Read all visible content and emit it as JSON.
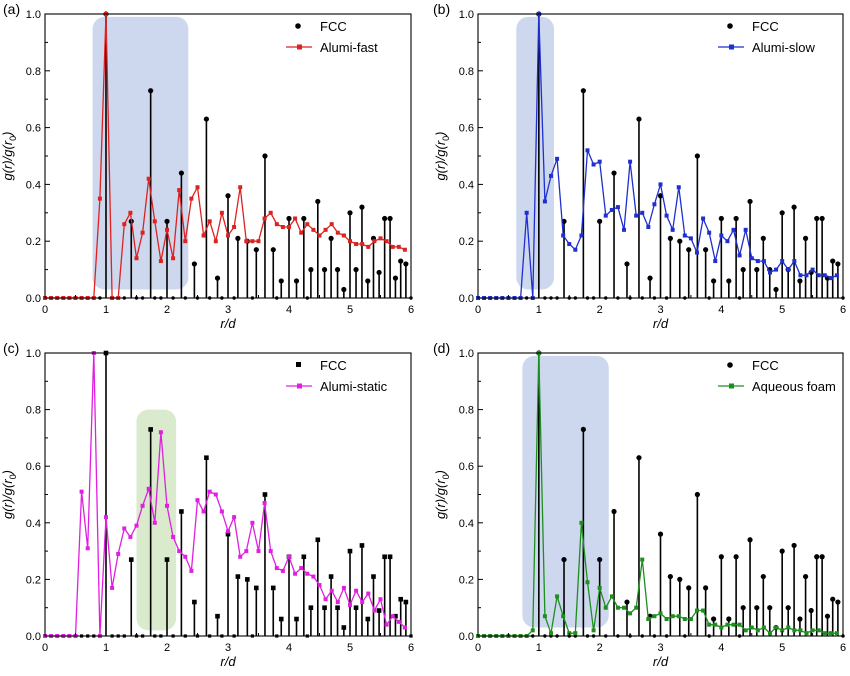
{
  "chart_data": [
    {
      "type": "line",
      "panel_label": "(a)",
      "xlabel": "r/d",
      "ylabel": "g(r)/g(r",
      "ylabel_sub": "0",
      "ylabel_tail": ")",
      "xlim": [
        0,
        6
      ],
      "ylim": [
        0,
        1.0
      ],
      "xticks": [
        "0",
        "1",
        "2",
        "3",
        "4",
        "5",
        "6"
      ],
      "yticks": [
        "0.0",
        "0.2",
        "0.4",
        "0.6",
        "0.8",
        "1.0"
      ],
      "legend_position": "top-right",
      "color": "#dd2222",
      "marker": "square",
      "highlight": {
        "x_range": [
          0.78,
          2.35
        ],
        "y_range": [
          0.03,
          0.99
        ],
        "color": "#c8d4ec"
      },
      "fcc": {
        "name": "FCC",
        "marker": "circle",
        "x": [
          1.0,
          1.414,
          1.732,
          2.0,
          2.236,
          2.449,
          2.646,
          2.828,
          3.0,
          3.162,
          3.317,
          3.464,
          3.606,
          3.742,
          3.873,
          4.0,
          4.123,
          4.243,
          4.359,
          4.472,
          4.583,
          4.69,
          4.796,
          4.899,
          5.0,
          5.099,
          5.196,
          5.292,
          5.385,
          5.477,
          5.568,
          5.657,
          5.745,
          5.831,
          5.916
        ],
        "y": [
          1.0,
          0.27,
          0.73,
          0.27,
          0.44,
          0.12,
          0.63,
          0.07,
          0.36,
          0.21,
          0.2,
          0.17,
          0.5,
          0.17,
          0.06,
          0.28,
          0.06,
          0.28,
          0.1,
          0.34,
          0.1,
          0.21,
          0.1,
          0.03,
          0.3,
          0.1,
          0.32,
          0.06,
          0.21,
          0.09,
          0.28,
          0.28,
          0.07,
          0.13,
          0.12
        ]
      },
      "series": [
        {
          "name": "Alumi-fast",
          "x": [
            0.0,
            0.1,
            0.2,
            0.3,
            0.4,
            0.5,
            0.6,
            0.7,
            0.8,
            0.9,
            1.0,
            1.1,
            1.2,
            1.3,
            1.4,
            1.5,
            1.6,
            1.7,
            1.8,
            1.9,
            2.0,
            2.1,
            2.2,
            2.3,
            2.4,
            2.5,
            2.6,
            2.7,
            2.8,
            2.9,
            3.0,
            3.1,
            3.2,
            3.3,
            3.4,
            3.5,
            3.6,
            3.7,
            3.8,
            3.9,
            4.0,
            4.1,
            4.2,
            4.3,
            4.4,
            4.5,
            4.6,
            4.7,
            4.8,
            4.9,
            5.0,
            5.1,
            5.2,
            5.3,
            5.4,
            5.5,
            5.6,
            5.7,
            5.8,
            5.9
          ],
          "values": [
            0.0,
            0.0,
            0.0,
            0.0,
            0.0,
            0.0,
            0.0,
            0.0,
            0.0,
            0.35,
            1.0,
            0.0,
            0.0,
            0.26,
            0.3,
            0.14,
            0.23,
            0.42,
            0.27,
            0.13,
            0.24,
            0.14,
            0.38,
            0.2,
            0.35,
            0.39,
            0.22,
            0.27,
            0.2,
            0.3,
            0.22,
            0.25,
            0.39,
            0.2,
            0.2,
            0.2,
            0.28,
            0.3,
            0.26,
            0.25,
            0.25,
            0.28,
            0.23,
            0.26,
            0.24,
            0.22,
            0.24,
            0.26,
            0.23,
            0.22,
            0.2,
            0.19,
            0.19,
            0.18,
            0.2,
            0.21,
            0.2,
            0.18,
            0.18,
            0.17
          ]
        }
      ]
    },
    {
      "type": "line",
      "panel_label": "(b)",
      "xlabel": "r/d",
      "ylabel": "g(r)/g(r",
      "ylabel_sub": "0",
      "ylabel_tail": ")",
      "xlim": [
        0,
        6
      ],
      "ylim": [
        0,
        1.0
      ],
      "xticks": [
        "0",
        "1",
        "2",
        "3",
        "4",
        "5",
        "6"
      ],
      "yticks": [
        "0.0",
        "0.2",
        "0.4",
        "0.6",
        "0.8",
        "1.0"
      ],
      "legend_position": "top-right",
      "color": "#1f2fd0",
      "marker": "square",
      "highlight": {
        "x_range": [
          0.63,
          1.25
        ],
        "y_range": [
          0.03,
          0.99
        ],
        "color": "#c8d4ec"
      },
      "fcc": {
        "name": "FCC",
        "marker": "circle",
        "x": [
          1.0,
          1.414,
          1.732,
          2.0,
          2.236,
          2.449,
          2.646,
          2.828,
          3.0,
          3.162,
          3.317,
          3.464,
          3.606,
          3.742,
          3.873,
          4.0,
          4.123,
          4.243,
          4.359,
          4.472,
          4.583,
          4.69,
          4.796,
          4.899,
          5.0,
          5.099,
          5.196,
          5.292,
          5.385,
          5.477,
          5.568,
          5.657,
          5.745,
          5.831,
          5.916
        ],
        "y": [
          1.0,
          0.27,
          0.73,
          0.27,
          0.44,
          0.12,
          0.63,
          0.07,
          0.36,
          0.21,
          0.2,
          0.17,
          0.5,
          0.17,
          0.06,
          0.28,
          0.06,
          0.28,
          0.1,
          0.34,
          0.1,
          0.21,
          0.1,
          0.03,
          0.3,
          0.1,
          0.32,
          0.06,
          0.21,
          0.09,
          0.28,
          0.28,
          0.07,
          0.13,
          0.12
        ]
      },
      "series": [
        {
          "name": "Alumi-slow",
          "x": [
            0.0,
            0.1,
            0.2,
            0.3,
            0.4,
            0.5,
            0.6,
            0.7,
            0.8,
            0.9,
            1.0,
            1.1,
            1.2,
            1.3,
            1.4,
            1.5,
            1.6,
            1.7,
            1.8,
            1.9,
            2.0,
            2.1,
            2.2,
            2.3,
            2.4,
            2.5,
            2.6,
            2.7,
            2.8,
            2.9,
            3.0,
            3.1,
            3.2,
            3.3,
            3.4,
            3.5,
            3.6,
            3.7,
            3.8,
            3.9,
            4.0,
            4.1,
            4.2,
            4.3,
            4.4,
            4.5,
            4.6,
            4.7,
            4.8,
            4.9,
            5.0,
            5.1,
            5.2,
            5.3,
            5.4,
            5.5,
            5.6,
            5.7,
            5.8,
            5.9
          ],
          "values": [
            0.0,
            0.0,
            0.0,
            0.0,
            0.0,
            0.0,
            0.0,
            0.0,
            0.3,
            0.0,
            1.0,
            0.34,
            0.43,
            0.49,
            0.22,
            0.19,
            0.17,
            0.22,
            0.52,
            0.47,
            0.48,
            0.29,
            0.31,
            0.32,
            0.24,
            0.48,
            0.29,
            0.3,
            0.25,
            0.33,
            0.4,
            0.29,
            0.24,
            0.39,
            0.22,
            0.21,
            0.16,
            0.28,
            0.23,
            0.13,
            0.22,
            0.2,
            0.24,
            0.15,
            0.24,
            0.14,
            0.13,
            0.13,
            0.09,
            0.1,
            0.13,
            0.1,
            0.13,
            0.08,
            0.08,
            0.1,
            0.08,
            0.08,
            0.07,
            0.08
          ]
        }
      ]
    },
    {
      "type": "line",
      "panel_label": "(c)",
      "xlabel": "r/d",
      "ylabel": "g(r)/g(r",
      "ylabel_sub": "0",
      "ylabel_tail": ")",
      "xlim": [
        0,
        6
      ],
      "ylim": [
        0,
        1.0
      ],
      "xticks": [
        "0",
        "1",
        "2",
        "3",
        "4",
        "5",
        "6"
      ],
      "yticks": [
        "0.0",
        "0.2",
        "0.4",
        "0.6",
        "0.8",
        "1.0"
      ],
      "legend_position": "top-right",
      "color": "#e020e0",
      "marker": "square",
      "highlight": {
        "x_range": [
          1.5,
          2.15
        ],
        "y_range": [
          0.02,
          0.8
        ],
        "color": "#d6e8c8"
      },
      "fcc": {
        "name": "FCC",
        "marker": "square",
        "x": [
          1.0,
          1.414,
          1.732,
          2.0,
          2.236,
          2.449,
          2.646,
          2.828,
          3.0,
          3.162,
          3.317,
          3.464,
          3.606,
          3.742,
          3.873,
          4.0,
          4.123,
          4.243,
          4.359,
          4.472,
          4.583,
          4.69,
          4.796,
          4.899,
          5.0,
          5.099,
          5.196,
          5.292,
          5.385,
          5.477,
          5.568,
          5.657,
          5.745,
          5.831,
          5.916
        ],
        "y": [
          1.0,
          0.27,
          0.73,
          0.27,
          0.44,
          0.12,
          0.63,
          0.07,
          0.36,
          0.21,
          0.2,
          0.17,
          0.5,
          0.17,
          0.06,
          0.28,
          0.06,
          0.28,
          0.1,
          0.34,
          0.1,
          0.21,
          0.1,
          0.03,
          0.3,
          0.1,
          0.32,
          0.06,
          0.21,
          0.09,
          0.28,
          0.28,
          0.07,
          0.13,
          0.12
        ]
      },
      "series": [
        {
          "name": "Alumi-static",
          "x": [
            0.0,
            0.1,
            0.2,
            0.3,
            0.4,
            0.5,
            0.6,
            0.7,
            0.8,
            0.9,
            1.0,
            1.1,
            1.2,
            1.3,
            1.4,
            1.5,
            1.6,
            1.7,
            1.8,
            1.9,
            2.0,
            2.1,
            2.2,
            2.3,
            2.4,
            2.5,
            2.6,
            2.7,
            2.8,
            2.9,
            3.0,
            3.1,
            3.2,
            3.3,
            3.4,
            3.5,
            3.6,
            3.7,
            3.8,
            3.9,
            4.0,
            4.1,
            4.2,
            4.3,
            4.4,
            4.5,
            4.6,
            4.7,
            4.8,
            4.9,
            5.0,
            5.1,
            5.2,
            5.3,
            5.4,
            5.5,
            5.6,
            5.7,
            5.8,
            5.9
          ],
          "values": [
            0.0,
            0.0,
            0.0,
            0.0,
            0.0,
            0.0,
            0.51,
            0.31,
            1.0,
            0.0,
            0.42,
            0.17,
            0.29,
            0.38,
            0.35,
            0.39,
            0.46,
            0.52,
            0.4,
            0.72,
            0.46,
            0.35,
            0.3,
            0.28,
            0.23,
            0.48,
            0.44,
            0.51,
            0.5,
            0.44,
            0.37,
            0.42,
            0.28,
            0.3,
            0.4,
            0.3,
            0.47,
            0.3,
            0.24,
            0.23,
            0.28,
            0.22,
            0.24,
            0.22,
            0.21,
            0.18,
            0.13,
            0.16,
            0.12,
            0.17,
            0.11,
            0.16,
            0.12,
            0.15,
            0.09,
            0.13,
            0.04,
            0.07,
            0.05,
            0.03
          ]
        }
      ]
    },
    {
      "type": "line",
      "panel_label": "(d)",
      "xlabel": "r/d",
      "ylabel": "g(r)/g(r",
      "ylabel_sub": "0",
      "ylabel_tail": ")",
      "xlim": [
        0,
        6
      ],
      "ylim": [
        0,
        1.0
      ],
      "xticks": [
        "0",
        "1",
        "2",
        "3",
        "4",
        "5",
        "6"
      ],
      "yticks": [
        "0.0",
        "0.2",
        "0.4",
        "0.6",
        "0.8",
        "1.0"
      ],
      "legend_position": "top-right",
      "color": "#1e8f1e",
      "marker": "square",
      "highlight": {
        "x_range": [
          0.73,
          2.15
        ],
        "y_range": [
          0.03,
          0.99
        ],
        "color": "#c8d4ec"
      },
      "fcc": {
        "name": "FCC",
        "marker": "circle",
        "x": [
          1.0,
          1.414,
          1.732,
          2.0,
          2.236,
          2.449,
          2.646,
          2.828,
          3.0,
          3.162,
          3.317,
          3.464,
          3.606,
          3.742,
          3.873,
          4.0,
          4.123,
          4.243,
          4.359,
          4.472,
          4.583,
          4.69,
          4.796,
          4.899,
          5.0,
          5.099,
          5.196,
          5.292,
          5.385,
          5.477,
          5.568,
          5.657,
          5.745,
          5.831,
          5.916
        ],
        "y": [
          1.0,
          0.27,
          0.73,
          0.27,
          0.44,
          0.12,
          0.63,
          0.07,
          0.36,
          0.21,
          0.2,
          0.17,
          0.5,
          0.17,
          0.06,
          0.28,
          0.06,
          0.28,
          0.1,
          0.34,
          0.1,
          0.21,
          0.1,
          0.03,
          0.3,
          0.1,
          0.32,
          0.06,
          0.21,
          0.09,
          0.28,
          0.28,
          0.07,
          0.13,
          0.12
        ]
      },
      "series": [
        {
          "name": "Aqueous foam",
          "x": [
            0.0,
            0.1,
            0.2,
            0.3,
            0.4,
            0.5,
            0.6,
            0.7,
            0.8,
            0.9,
            1.0,
            1.1,
            1.2,
            1.3,
            1.4,
            1.5,
            1.6,
            1.7,
            1.8,
            1.9,
            2.0,
            2.1,
            2.2,
            2.3,
            2.4,
            2.5,
            2.6,
            2.7,
            2.8,
            2.9,
            3.0,
            3.1,
            3.2,
            3.3,
            3.4,
            3.5,
            3.6,
            3.7,
            3.8,
            3.9,
            4.0,
            4.1,
            4.2,
            4.3,
            4.4,
            4.5,
            4.6,
            4.7,
            4.8,
            4.9,
            5.0,
            5.1,
            5.2,
            5.3,
            5.4,
            5.5,
            5.6,
            5.7,
            5.8,
            5.9
          ],
          "values": [
            0.0,
            0.0,
            0.0,
            0.0,
            0.0,
            0.0,
            0.0,
            0.0,
            0.0,
            0.02,
            1.0,
            0.07,
            0.01,
            0.14,
            0.07,
            0.01,
            0.01,
            0.4,
            0.19,
            0.02,
            0.17,
            0.1,
            0.14,
            0.1,
            0.1,
            0.08,
            0.1,
            0.27,
            0.06,
            0.07,
            0.08,
            0.06,
            0.07,
            0.07,
            0.06,
            0.06,
            0.09,
            0.09,
            0.04,
            0.04,
            0.03,
            0.04,
            0.04,
            0.04,
            0.02,
            0.03,
            0.02,
            0.03,
            0.01,
            0.03,
            0.02,
            0.03,
            0.02,
            0.02,
            0.01,
            0.02,
            0.02,
            0.01,
            0.01,
            0.01
          ]
        }
      ]
    }
  ]
}
